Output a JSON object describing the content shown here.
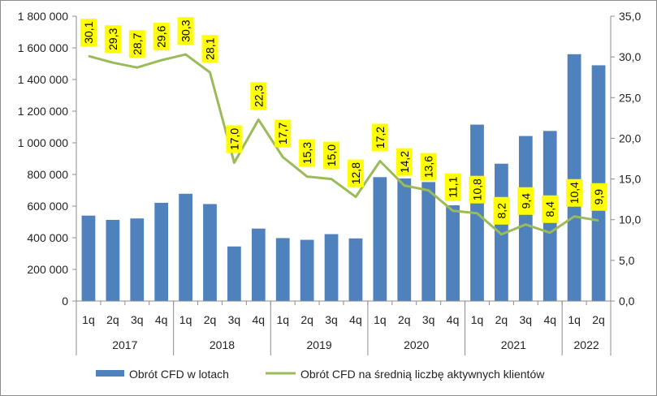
{
  "chart_data": {
    "type": "bar",
    "categories": [
      "1q",
      "2q",
      "3q",
      "4q",
      "1q",
      "2q",
      "3q",
      "4q",
      "1q",
      "2q",
      "3q",
      "4q",
      "1q",
      "2q",
      "3q",
      "4q",
      "1q",
      "2q",
      "3q",
      "4q",
      "1q",
      "2q"
    ],
    "groups": [
      {
        "label": "2017",
        "count": 4
      },
      {
        "label": "2018",
        "count": 4
      },
      {
        "label": "2019",
        "count": 4
      },
      {
        "label": "2020",
        "count": 4
      },
      {
        "label": "2021",
        "count": 4
      },
      {
        "label": "2022",
        "count": 2
      }
    ],
    "series": [
      {
        "name": "Obrót CFD w lotach",
        "type": "bar",
        "axis": "left",
        "color": "#4f81bd",
        "values": [
          540000,
          513000,
          522000,
          621000,
          678000,
          613000,
          345000,
          458000,
          398000,
          387000,
          423000,
          396000,
          783000,
          775000,
          752000,
          605000,
          1115000,
          868000,
          1043000,
          1075000,
          1560000,
          1490000
        ]
      },
      {
        "name": "Obrót CFD na średnią liczbę aktywnych klientów",
        "type": "line",
        "axis": "right",
        "color": "#9bbb59",
        "values": [
          30.1,
          29.3,
          28.7,
          29.6,
          30.3,
          28.1,
          17.0,
          22.3,
          17.7,
          15.3,
          15.0,
          12.8,
          17.2,
          14.2,
          13.6,
          11.1,
          10.8,
          8.2,
          9.4,
          8.4,
          10.4,
          9.9
        ],
        "labels": [
          "30,1",
          "29,3",
          "28,7",
          "29,6",
          "30,3",
          "28,1",
          "17,0",
          "22,3",
          "17,7",
          "15,3",
          "15,0",
          "12,8",
          "17,2",
          "14,2",
          "13,6",
          "11,1",
          "10,8",
          "8,2",
          "9,4",
          "8,4",
          "10,4",
          "9,9"
        ]
      }
    ],
    "y_left": {
      "min": 0,
      "max": 1800000,
      "ticks": [
        "0",
        "200 000",
        "400 000",
        "600 000",
        "800 000",
        "1 000 000",
        "1 200 000",
        "1 400 000",
        "1 600 000",
        "1 800 000"
      ]
    },
    "y_right": {
      "min": 0,
      "max": 35,
      "ticks": [
        "0,0",
        "5,0",
        "10,0",
        "15,0",
        "20,0",
        "25,0",
        "30,0",
        "35,0"
      ]
    },
    "grid": false,
    "legend_position": "bottom",
    "label_bg": "#ffff00"
  }
}
